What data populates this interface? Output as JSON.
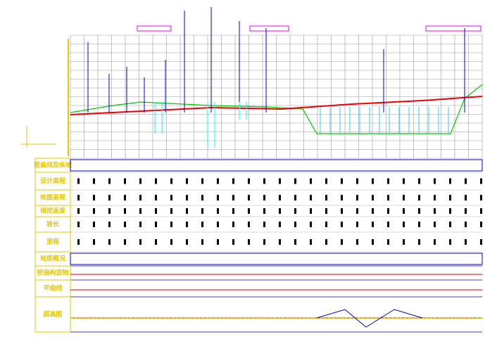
{
  "row_labels": [
    "竖曲线及纵坡",
    "设计高程",
    "地面高程",
    "填挖高度",
    "坡长",
    "里程",
    "地质概况",
    "桥涵构造物",
    "平曲线",
    "超高图"
  ]
}
